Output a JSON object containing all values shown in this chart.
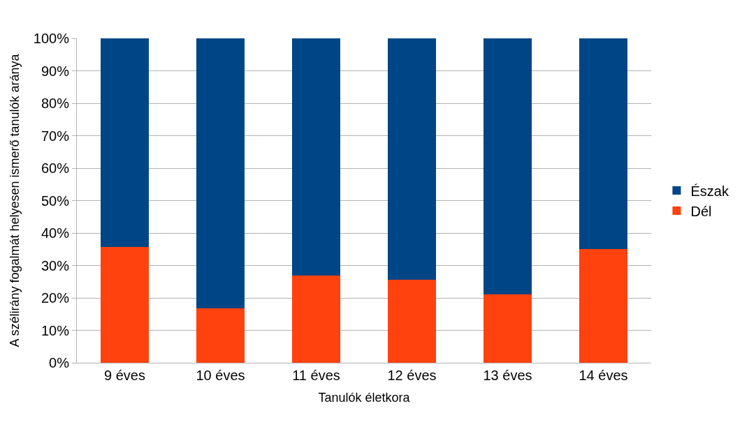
{
  "chart_data": {
    "type": "bar",
    "stacked": true,
    "xlabel": "Tanulók életkora",
    "ylabel": "A szélirány fogalmát helyesen ismerő tanulók aránya",
    "categories": [
      "9 éves",
      "10 éves",
      "11 éves",
      "12 éves",
      "13 éves",
      "14 éves"
    ],
    "series": [
      {
        "name": "Dél",
        "color": "#ff420e",
        "values": [
          35.7,
          16.7,
          26.8,
          25.5,
          21.1,
          35.0
        ]
      },
      {
        "name": "Észak",
        "color": "#004586",
        "values": [
          64.3,
          83.3,
          73.2,
          74.5,
          78.9,
          65.0
        ]
      }
    ],
    "ylim": [
      0,
      100
    ],
    "yticks": [
      {
        "value": 0,
        "label": "0%"
      },
      {
        "value": 10,
        "label": "10%"
      },
      {
        "value": 20,
        "label": "20%"
      },
      {
        "value": 30,
        "label": "30%"
      },
      {
        "value": 40,
        "label": "40%"
      },
      {
        "value": 50,
        "label": "50%"
      },
      {
        "value": 60,
        "label": "60%"
      },
      {
        "value": 70,
        "label": "70%"
      },
      {
        "value": 80,
        "label": "80%"
      },
      {
        "value": 90,
        "label": "90%"
      },
      {
        "value": 100,
        "label": "100%"
      }
    ],
    "grid": "y",
    "legend": "right"
  }
}
